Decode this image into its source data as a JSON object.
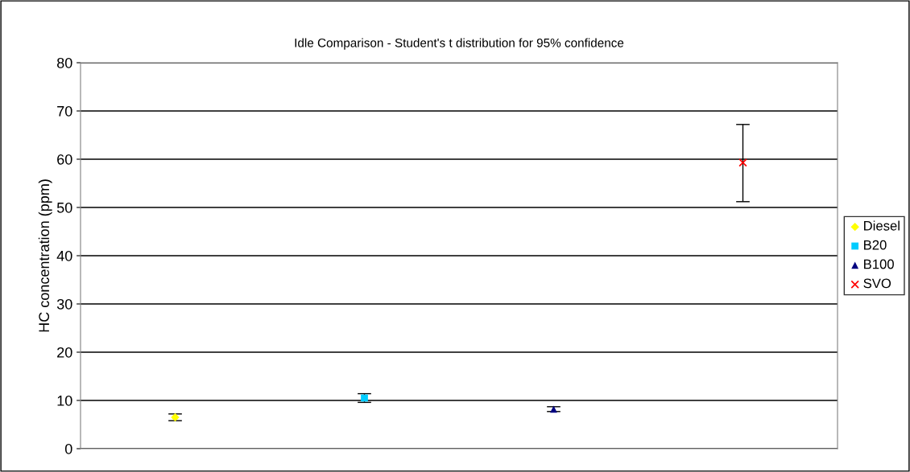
{
  "chart_data": {
    "type": "scatter",
    "title": "Idle Comparison - Student's t distribution for 95% confidence",
    "ylabel": "HC concentration (ppm)",
    "categories": [
      null,
      null,
      null,
      null
    ],
    "series": [
      {
        "name": "Diesel",
        "color": "#ffff00",
        "marker": "diamond",
        "values": [
          6.5,
          null,
          null,
          null
        ],
        "errors": [
          0.7,
          null,
          null,
          null
        ]
      },
      {
        "name": "B20",
        "color": "#00ccff",
        "marker": "square",
        "values": [
          null,
          10.5,
          null,
          null
        ],
        "errors": [
          null,
          0.9,
          null,
          null
        ]
      },
      {
        "name": "B100",
        "color": "#000080",
        "marker": "triangle",
        "values": [
          null,
          null,
          8.2,
          null
        ],
        "errors": [
          null,
          null,
          0.5,
          null
        ]
      },
      {
        "name": "SVO",
        "color": "#ff0000",
        "marker": "cross",
        "values": [
          null,
          null,
          null,
          59.3
        ],
        "errors": [
          null,
          null,
          null,
          [
            51.2,
            67.2
          ]
        ]
      }
    ],
    "ylim": [
      0,
      80
    ],
    "yticks": [
      0,
      10,
      20,
      30,
      40,
      50,
      60,
      70,
      80
    ],
    "grid": "y",
    "legend": "right"
  }
}
